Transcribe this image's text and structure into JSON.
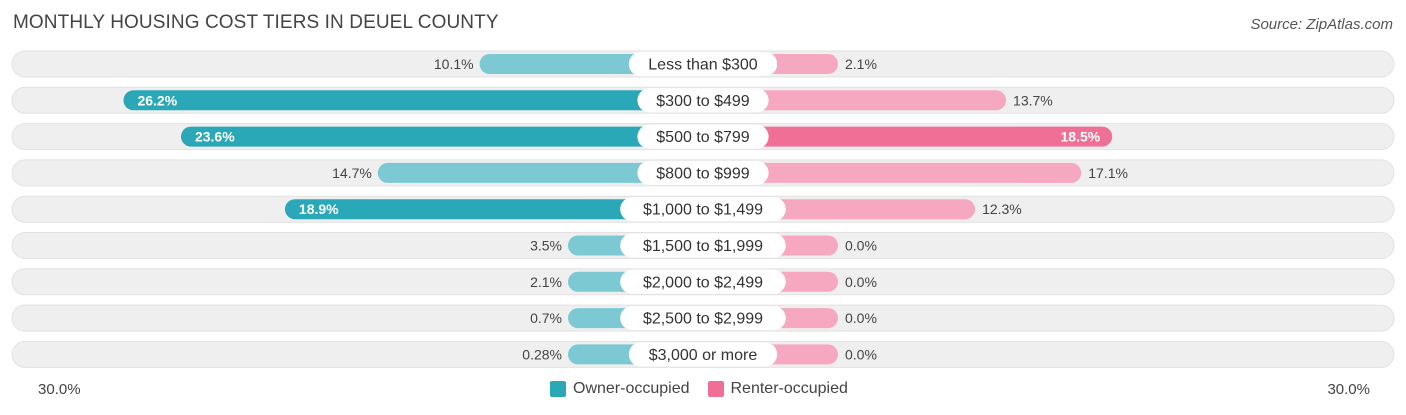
{
  "title": "MONTHLY HOUSING COST TIERS IN DEUEL COUNTY",
  "source": "Source: ZipAtlas.com",
  "colors": {
    "owner": "#2ba8b8",
    "owner_light": "#7cc9d3",
    "renter": "#f06f97",
    "renter_light": "#f6a8c1",
    "row_bg": "#efefef"
  },
  "legend": {
    "owner_label": "Owner-occupied",
    "renter_label": "Renter-occupied"
  },
  "axis": {
    "left_label": "30.0%",
    "right_label": "30.0%"
  },
  "chart_data": {
    "type": "bar",
    "orientation": "horizontal-diverging",
    "title": "MONTHLY HOUSING COST TIERS IN DEUEL COUNTY",
    "xlim": [
      -30,
      30
    ],
    "categories": [
      "Less than $300",
      "$300 to $499",
      "$500 to $799",
      "$800 to $999",
      "$1,000 to $1,499",
      "$1,500 to $1,999",
      "$2,000 to $2,499",
      "$2,500 to $2,999",
      "$3,000 or more"
    ],
    "series": [
      {
        "name": "Owner-occupied",
        "values": [
          10.1,
          26.2,
          23.6,
          14.7,
          18.9,
          3.5,
          2.1,
          0.7,
          0.28
        ],
        "labels": [
          "10.1%",
          "26.2%",
          "23.6%",
          "14.7%",
          "18.9%",
          "3.5%",
          "2.1%",
          "0.7%",
          "0.28%"
        ]
      },
      {
        "name": "Renter-occupied",
        "values": [
          2.1,
          13.7,
          18.5,
          17.1,
          12.3,
          0.0,
          0.0,
          0.0,
          0.0
        ],
        "labels": [
          "2.1%",
          "13.7%",
          "18.5%",
          "17.1%",
          "12.3%",
          "0.0%",
          "0.0%",
          "0.0%",
          "0.0%"
        ]
      }
    ]
  }
}
